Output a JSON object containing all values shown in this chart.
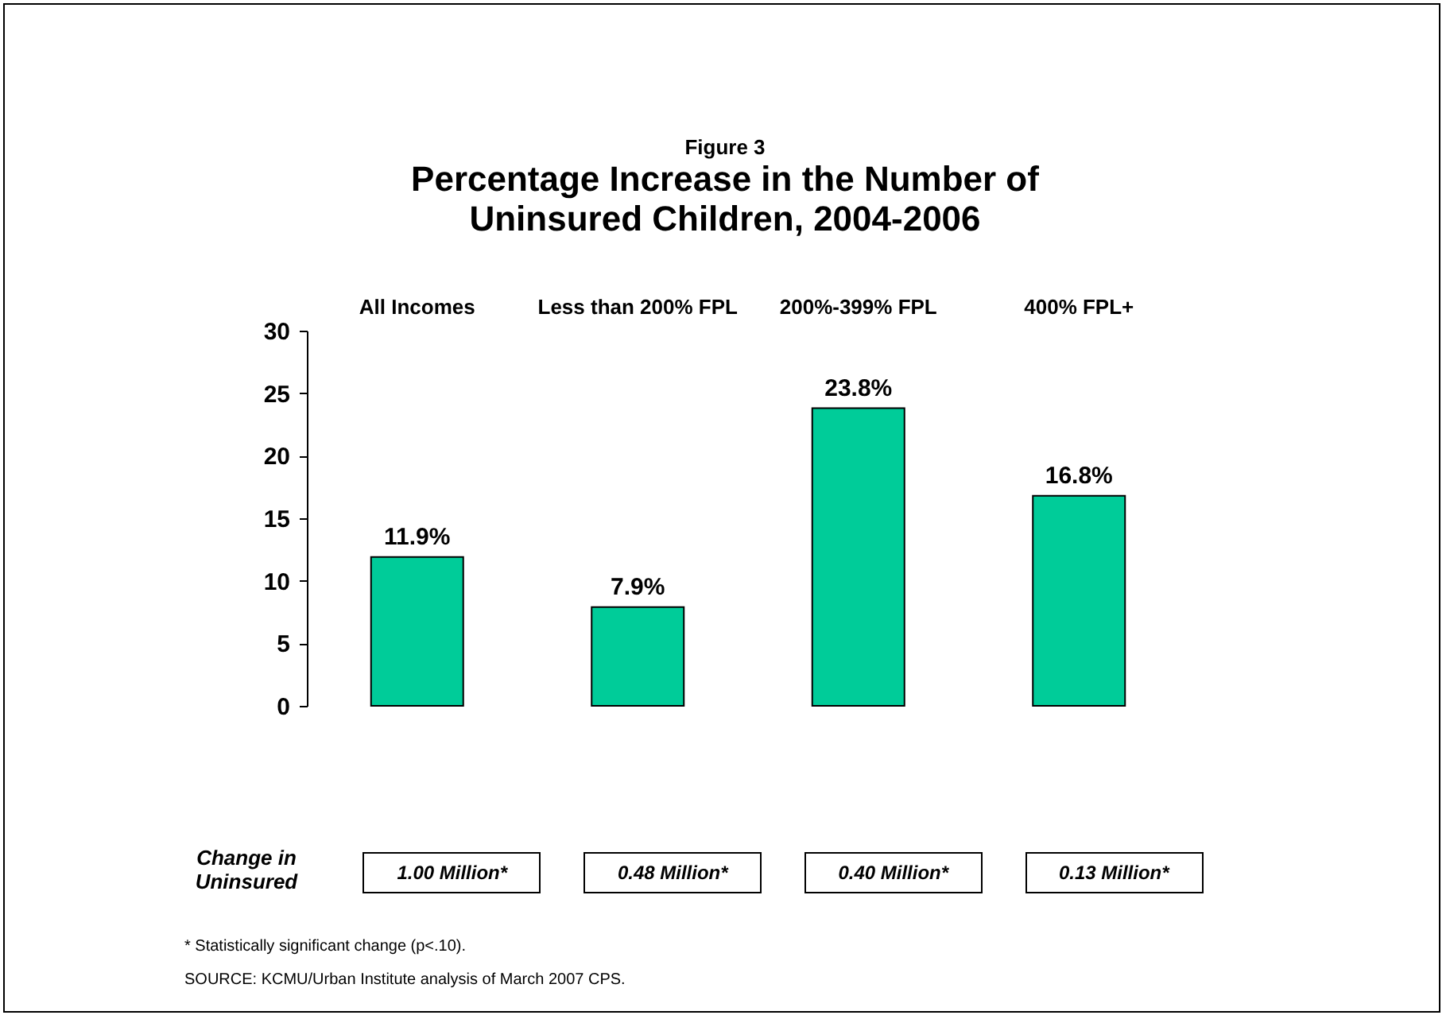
{
  "chart_data": {
    "type": "bar",
    "subtitle": "Figure 3",
    "title": "Percentage Increase in the Number of Uninsured Children, 2004-2006",
    "categories": [
      "All Incomes",
      "Less than 200% FPL",
      "200%-399% FPL",
      "400% FPL+"
    ],
    "values": [
      11.9,
      7.9,
      23.8,
      16.8
    ],
    "color": "#00cc99",
    "value_labels": [
      "11.9%",
      "7.9%",
      "23.8%",
      "16.8%"
    ],
    "ylim": [
      0,
      30
    ],
    "yticks": [
      0,
      5,
      10,
      15,
      20,
      25,
      30
    ],
    "grid": false,
    "annotations": [
      "Change in Uninsured",
      "1.00 Million*",
      "0.48 Million*",
      "0.40 Million*",
      "0.13 Million*",
      "* Statistically significant change (p<.10).",
      "SOURCE: KCMU/Urban Institute analysis of March 2007 CPS."
    ]
  }
}
